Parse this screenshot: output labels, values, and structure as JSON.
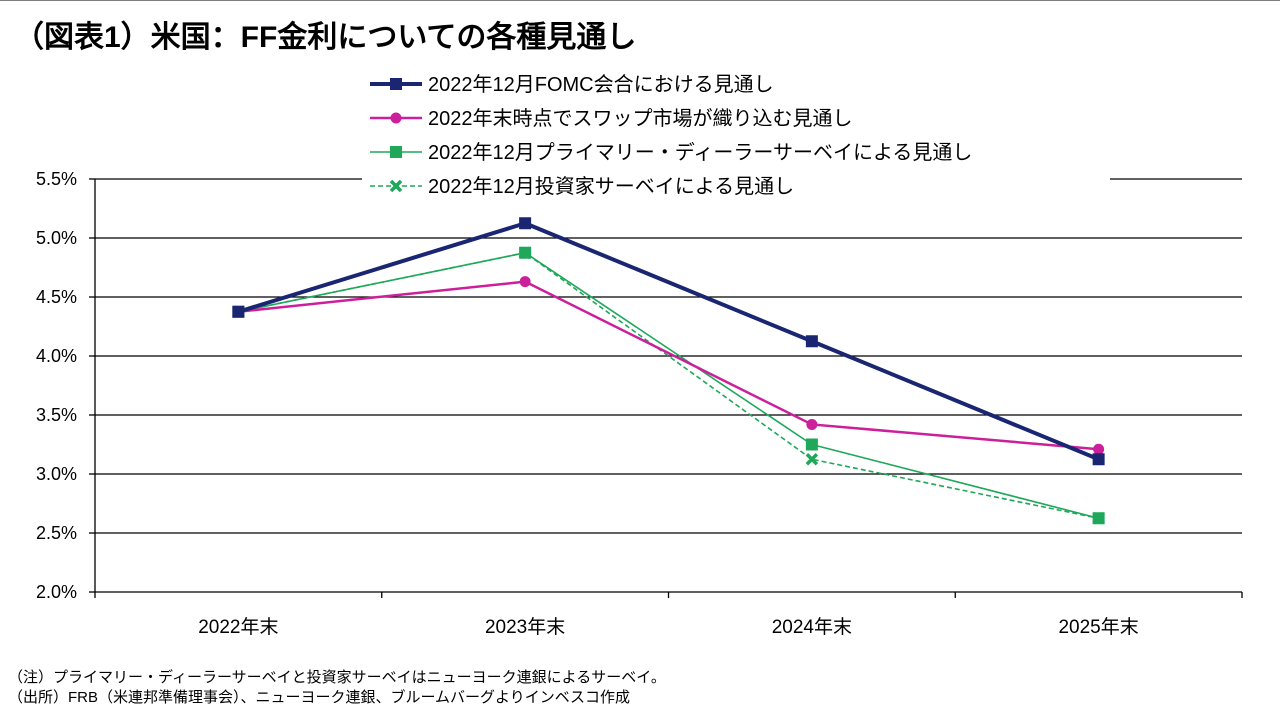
{
  "page": {
    "title": "（図表1）米国：FF金利についての各種見通し",
    "notes": [
      "（注）プライマリー・ディーラーサーベイと投資家サーベイはニューヨーク連銀によるサーベイ。",
      "（出所）FRB（米連邦準備理事会）、ニューヨーク連銀、ブルームバーグよりインベスコ作成"
    ]
  },
  "colors": {
    "navy": "#1a2672",
    "magenta": "#cc1f9b",
    "green": "#1fa85a",
    "grid": "#000000"
  },
  "chart_data": {
    "type": "line",
    "title": "（図表1）米国：FF金利についての各種見通し",
    "xlabel": "",
    "ylabel": "",
    "categories": [
      "2022年末",
      "2023年末",
      "2024年末",
      "2025年末"
    ],
    "ylim": [
      2.0,
      5.5
    ],
    "yticks": [
      2.0,
      2.5,
      3.0,
      3.5,
      4.0,
      4.5,
      5.0,
      5.5
    ],
    "ytick_labels": [
      "2.0%",
      "2.5%",
      "3.0%",
      "3.5%",
      "4.0%",
      "4.5%",
      "5.0%",
      "5.5%"
    ],
    "grid": true,
    "legend_position": "top-center",
    "series": [
      {
        "name": "2022年12月FOMC会合における見通し",
        "values": [
          4.375,
          5.125,
          4.125,
          3.125
        ],
        "color": "#1a2672",
        "marker": "square",
        "dash": "solid",
        "weight": "thick"
      },
      {
        "name": "2022年末時点でスワップ市場が織り込む見通し",
        "values": [
          4.375,
          4.63,
          3.42,
          3.21
        ],
        "color": "#cc1f9b",
        "marker": "circle",
        "dash": "solid",
        "weight": "medium"
      },
      {
        "name": "2022年12月プライマリー・ディーラーサーベイによる見通し",
        "values": [
          4.375,
          4.875,
          3.25,
          2.625
        ],
        "color": "#1fa85a",
        "marker": "square",
        "dash": "solid",
        "weight": "thin"
      },
      {
        "name": "2022年12月投資家サーベイによる見通し",
        "values": [
          4.375,
          4.875,
          3.125,
          2.625
        ],
        "color": "#1fa85a",
        "marker": "x",
        "dash": "dashed",
        "weight": "thin"
      }
    ]
  }
}
